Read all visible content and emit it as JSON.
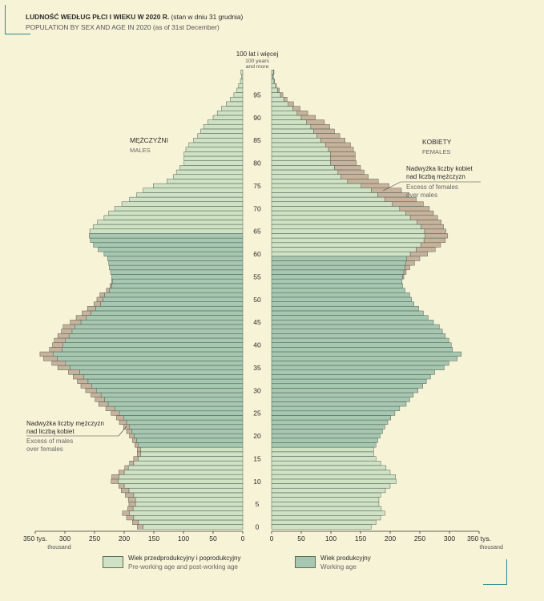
{
  "title": {
    "main_bold": "LUDNOŚĆ WEDŁUG PŁCI I WIEKU W 2020 R.",
    "main_normal": "(stan w dniu 31 grudnia)",
    "sub": "POPULATION BY SEX AND AGE IN 2020 (as of 31st December)"
  },
  "legend": {
    "non_working_pl": "Wiek przedprodukcyjny i poprodukcyjny",
    "non_working_en": "Pre-working age and post-working age",
    "working_pl": "Wiek produkcyjny",
    "working_en": "Working age"
  },
  "colors": {
    "background": "#f7f3d7",
    "non_working": "#cfe2c3",
    "working": "#a6c7b0",
    "excess": "#c7b39b",
    "bar_stroke": "#55615a",
    "accent": "#2e8b8b"
  },
  "chart_data": {
    "type": "bar",
    "orientation": "horizontal-population-pyramid",
    "unit_pl": "tys.",
    "unit_en": "thousand",
    "top_label_pl": "100 lat i więcej",
    "top_label_en_1": "100 years",
    "top_label_en_2": "and more",
    "x_ticks_left": [
      "350 tys.",
      "300",
      "250",
      "200",
      "150",
      "100",
      "50",
      "0"
    ],
    "x_ticks_right": [
      "0",
      "50",
      "100",
      "150",
      "200",
      "250",
      "300",
      "350 tys."
    ],
    "x_unit_en": "thousand",
    "xlim": [
      0,
      350
    ],
    "age_ticks": [
      "0",
      "5",
      "10",
      "15",
      "20",
      "25",
      "30",
      "35",
      "40",
      "45",
      "50",
      "55",
      "60",
      "65",
      "70",
      "75",
      "80",
      "85",
      "90",
      "95"
    ],
    "males_label_pl": "MĘŻCZYŹNI",
    "males_label_en": "MALES",
    "females_label_pl": "KOBIETY",
    "females_label_en": "FEMALES",
    "annotation_females_pl_1": "Nadwyżka liczby kobiet",
    "annotation_females_pl_2": "nad liczbą mężczyzn",
    "annotation_females_en_1": "Excess of females",
    "annotation_females_en_2": "over males",
    "annotation_males_pl_1": "Nadwyżka liczby mężczyzn",
    "annotation_males_pl_2": "nad liczbą kobiet",
    "annotation_males_en_1": "Excess of males",
    "annotation_males_en_2": "over females",
    "working_age_males": [
      18,
      64
    ],
    "working_age_females": [
      18,
      59
    ],
    "ages": [
      0,
      1,
      2,
      3,
      4,
      5,
      6,
      7,
      8,
      9,
      10,
      11,
      12,
      13,
      14,
      15,
      16,
      17,
      18,
      19,
      20,
      21,
      22,
      23,
      24,
      25,
      26,
      27,
      28,
      29,
      30,
      31,
      32,
      33,
      34,
      35,
      36,
      37,
      38,
      39,
      40,
      41,
      42,
      43,
      44,
      45,
      46,
      47,
      48,
      49,
      50,
      51,
      52,
      53,
      54,
      55,
      56,
      57,
      58,
      59,
      60,
      61,
      62,
      63,
      64,
      65,
      66,
      67,
      68,
      69,
      70,
      71,
      72,
      73,
      74,
      75,
      76,
      77,
      78,
      79,
      80,
      81,
      82,
      83,
      84,
      85,
      86,
      87,
      88,
      89,
      90,
      91,
      92,
      93,
      94,
      95,
      96,
      97,
      98,
      99,
      100
    ],
    "males": [
      178,
      186,
      196,
      203,
      194,
      192,
      193,
      198,
      205,
      209,
      222,
      221,
      209,
      199,
      191,
      184,
      178,
      178,
      182,
      186,
      191,
      196,
      201,
      208,
      213,
      222,
      231,
      243,
      249,
      256,
      265,
      273,
      279,
      286,
      294,
      312,
      322,
      336,
      342,
      326,
      321,
      318,
      312,
      306,
      303,
      291,
      281,
      271,
      262,
      251,
      246,
      241,
      230,
      224,
      221,
      221,
      223,
      225,
      226,
      228,
      234,
      244,
      252,
      257,
      259,
      258,
      252,
      245,
      234,
      226,
      216,
      204,
      191,
      179,
      168,
      151,
      128,
      117,
      112,
      106,
      99,
      99,
      99,
      96,
      91,
      83,
      76,
      71,
      66,
      59,
      50,
      43,
      36,
      28,
      21,
      15,
      10,
      7,
      4,
      2,
      3
    ],
    "females": [
      168,
      176,
      184,
      191,
      185,
      181,
      181,
      184,
      192,
      200,
      210,
      209,
      200,
      193,
      184,
      176,
      172,
      172,
      176,
      179,
      183,
      187,
      191,
      196,
      201,
      208,
      216,
      227,
      233,
      239,
      247,
      255,
      261,
      268,
      275,
      291,
      299,
      313,
      320,
      305,
      303,
      299,
      293,
      288,
      283,
      273,
      264,
      256,
      248,
      240,
      236,
      233,
      225,
      221,
      220,
      223,
      227,
      233,
      241,
      250,
      263,
      276,
      285,
      293,
      297,
      294,
      290,
      286,
      280,
      273,
      266,
      256,
      244,
      232,
      219,
      198,
      180,
      163,
      156,
      150,
      143,
      141,
      141,
      138,
      133,
      124,
      115,
      106,
      98,
      89,
      74,
      61,
      48,
      37,
      26,
      19,
      13,
      8,
      5,
      3,
      4
    ]
  }
}
